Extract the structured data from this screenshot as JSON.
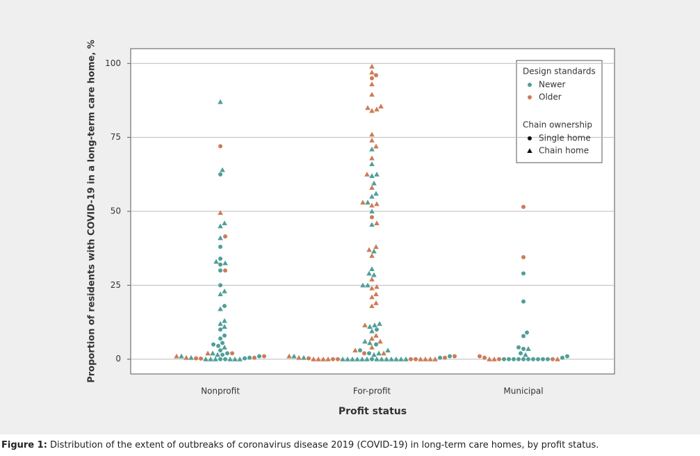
{
  "chart_data": {
    "type": "swarm",
    "xlabel": "Profit status",
    "ylabel": "Proportion of residents with COVID-19 in a long-term care home, %",
    "categories": [
      "Nonprofit",
      "For-profit",
      "Municipal"
    ],
    "ylim": [
      -5,
      105
    ],
    "yticks": [
      0,
      25,
      50,
      75,
      100
    ],
    "grid": true,
    "legend": {
      "color_title": "Design standards",
      "shape_title": "Chain ownership",
      "shapes": [
        {
          "name": "Single home",
          "marker": "circle"
        },
        {
          "name": "Chain home",
          "marker": "triangle"
        }
      ]
    },
    "series": [
      {
        "name": "Newer",
        "color": "#4f9f98",
        "groups": [
          {
            "single": [
              62.5,
              38,
              34,
              32,
              30,
              25,
              18,
              10,
              8,
              7,
              5.5,
              5,
              4.5,
              3,
              2,
              1.5,
              1,
              0.5,
              0,
              0,
              0.3
            ],
            "chain": [
              87,
              64,
              46,
              45,
              41,
              33,
              32.5,
              23,
              22,
              17,
              13,
              12,
              11,
              4,
              2,
              1.5,
              1,
              0.5,
              0,
              0,
              0,
              0,
              0,
              0
            ]
          },
          {
            "single": [
              10,
              5,
              3,
              2,
              1,
              0.5,
              0
            ],
            "chain": [
              71,
              66,
              62.5,
              62,
              59.5,
              56,
              55,
              53,
              50,
              45.5,
              36.5,
              30.5,
              29,
              28.5,
              25,
              25,
              12,
              11.5,
              11,
              9.5,
              6,
              5.5,
              3,
              2,
              1.5,
              1,
              0.5,
              0,
              0,
              0,
              0,
              0,
              0,
              0,
              0,
              0,
              0,
              0,
              0,
              0
            ]
          },
          {
            "single": [
              29,
              19.5,
              9,
              7.8,
              4,
              3.5,
              2,
              1,
              0.5,
              0,
              0,
              0,
              0,
              0,
              0,
              0,
              0,
              0,
              0
            ],
            "chain": [
              3.5,
              1.5
            ]
          }
        ]
      },
      {
        "name": "Older",
        "color": "#cd7b56",
        "groups": [
          {
            "single": [
              72,
              41.5,
              30,
              2,
              1,
              0.5,
              0.3,
              0.2
            ],
            "chain": [
              49.5,
              2,
              1,
              0.5
            ]
          },
          {
            "single": [
              96,
              95,
              48,
              2,
              1,
              0.5,
              0.3,
              0,
              0,
              0,
              0
            ],
            "chain": [
              99,
              97,
              93,
              89.5,
              85.5,
              85,
              84.5,
              84,
              76,
              74,
              72,
              68,
              62.5,
              58,
              53,
              52.5,
              52,
              46,
              38,
              37,
              35,
              27,
              24.5,
              24,
              22,
              21,
              19,
              18,
              11.5,
              8,
              7,
              6,
              4,
              3,
              2,
              1,
              0.5,
              0,
              0,
              0,
              0,
              0,
              0,
              0,
              0
            ]
          },
          {
            "single": [
              51.5,
              34.5,
              1,
              0.5,
              0,
              0
            ],
            "chain": [
              0,
              0,
              0
            ]
          }
        ]
      }
    ]
  },
  "caption": {
    "label": "Figure 1:",
    "text": "Distribution of the extent of outbreaks of coronavirus disease 2019 (COVID-19) in long-term care homes, by profit status."
  }
}
